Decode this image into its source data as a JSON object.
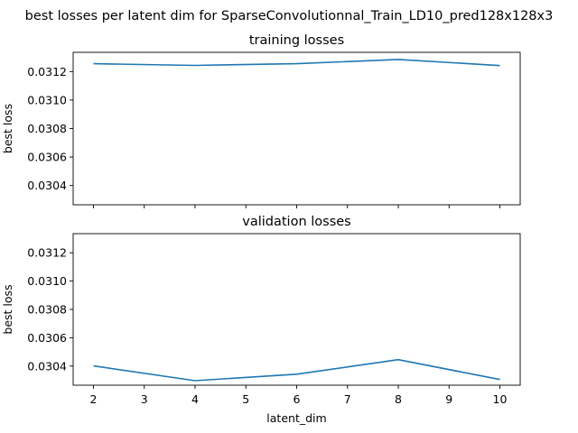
{
  "suptitle": "best losses per latent dim for SparseConvolutionnal_Train_LD10_pred128x128x3",
  "chart_data": [
    {
      "type": "line",
      "title": "training losses",
      "xlabel": "",
      "ylabel": "best loss",
      "x": [
        2,
        4,
        6,
        8,
        10
      ],
      "series": [
        {
          "values": [
            0.031255,
            0.031243,
            0.031255,
            0.031285,
            0.031242
          ]
        }
      ],
      "xlim": [
        1.6,
        10.4
      ],
      "ylim": [
        0.030265,
        0.031335
      ],
      "yticks": [
        0.0304,
        0.0306,
        0.0308,
        0.031,
        0.0312
      ],
      "ytick_labels": [
        "0.0304",
        "0.0306",
        "0.0308",
        "0.0310",
        "0.0312"
      ],
      "xticks": [
        2,
        3,
        4,
        5,
        6,
        7,
        8,
        9,
        10
      ],
      "xtick_labels_shown": false,
      "grid": false,
      "color": "#1f77b4"
    },
    {
      "type": "line",
      "title": "validation losses",
      "xlabel": "latent_dim",
      "ylabel": "best loss",
      "x": [
        2,
        4,
        6,
        8,
        10
      ],
      "series": [
        {
          "values": [
            0.030401,
            0.030297,
            0.030343,
            0.030445,
            0.030305
          ]
        }
      ],
      "xlim": [
        1.6,
        10.4
      ],
      "ylim": [
        0.030265,
        0.031335
      ],
      "yticks": [
        0.0304,
        0.0306,
        0.0308,
        0.031,
        0.0312
      ],
      "ytick_labels": [
        "0.0304",
        "0.0306",
        "0.0308",
        "0.0310",
        "0.0312"
      ],
      "xticks": [
        2,
        3,
        4,
        5,
        6,
        7,
        8,
        9,
        10
      ],
      "xtick_labels": [
        "2",
        "3",
        "4",
        "5",
        "6",
        "7",
        "8",
        "9",
        "10"
      ],
      "xtick_labels_shown": true,
      "grid": false,
      "color": "#1f77b4"
    }
  ]
}
